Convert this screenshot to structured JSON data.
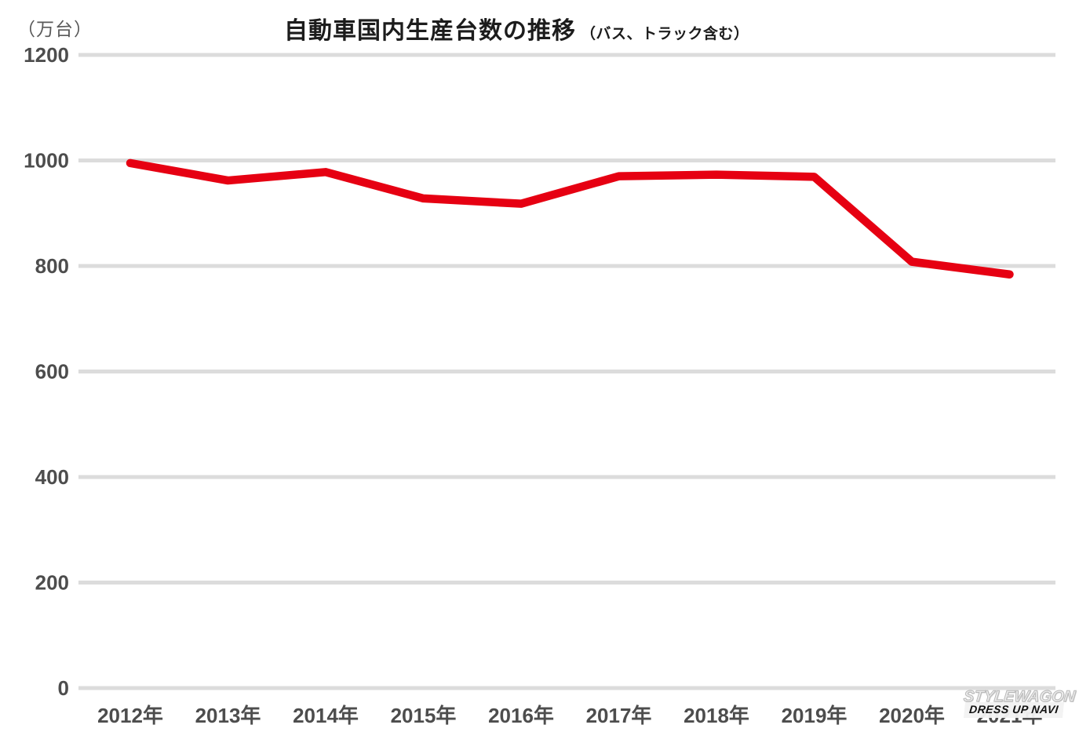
{
  "page": {
    "background": "#ffffff"
  },
  "chart": {
    "unit_label": "（万台）",
    "title": "自動車国内生産台数の推移",
    "subtitle": "（バス、トラック含む）",
    "line_color": "#e60012",
    "grid_color": "#dcdcdc",
    "label_color": "#4d4d4d",
    "title_color": "#1c1c1c"
  },
  "chart_data": {
    "type": "line",
    "title": "自動車国内生産台数の推移（バス、トラック含む）",
    "ylabel": "（万台）",
    "xlabel": "",
    "categories": [
      "2012年",
      "2013年",
      "2014年",
      "2015年",
      "2016年",
      "2017年",
      "2018年",
      "2019年",
      "2020年",
      "2021年"
    ],
    "series": [
      {
        "name": "自動車国内生産台数",
        "values": [
          995,
          962,
          978,
          928,
          918,
          970,
          973,
          969,
          808,
          784
        ]
      }
    ],
    "ylim": [
      0,
      1200
    ],
    "yticks": [
      0,
      200,
      400,
      600,
      800,
      1000,
      1200
    ],
    "grid": true,
    "legend": false,
    "line_width": 10.5
  },
  "watermark": {
    "line1": "STYLEWAGON",
    "line2": "DRESS UP NAVI"
  }
}
